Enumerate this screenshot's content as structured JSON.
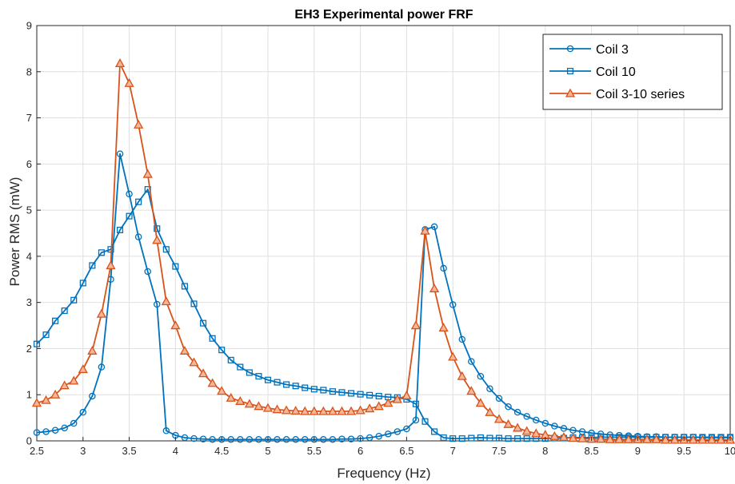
{
  "chart_data": {
    "type": "line",
    "title": "EH3 Experimental power FRF",
    "xlabel": "Frequency (Hz)",
    "ylabel": "Power RMS (mW)",
    "xlim": [
      2.5,
      10
    ],
    "ylim": [
      0,
      9
    ],
    "xticks": [
      "2.5",
      "3",
      "3.5",
      "4",
      "4.5",
      "5",
      "5.5",
      "6",
      "6.5",
      "7",
      "7.5",
      "8",
      "8.5",
      "9",
      "9.5",
      "10"
    ],
    "yticks": [
      "0",
      "1",
      "2",
      "3",
      "4",
      "5",
      "6",
      "7",
      "8",
      "9"
    ],
    "grid": true,
    "legend_position": "top-right",
    "x": [
      2.5,
      2.6,
      2.7,
      2.8,
      2.9,
      3.0,
      3.1,
      3.2,
      3.3,
      3.4,
      3.5,
      3.6,
      3.7,
      3.8,
      3.9,
      4.0,
      4.1,
      4.2,
      4.3,
      4.4,
      4.5,
      4.6,
      4.7,
      4.8,
      4.9,
      5.0,
      5.1,
      5.2,
      5.3,
      5.4,
      5.5,
      5.6,
      5.7,
      5.8,
      5.9,
      6.0,
      6.1,
      6.2,
      6.3,
      6.4,
      6.5,
      6.6,
      6.7,
      6.8,
      6.9,
      7.0,
      7.1,
      7.2,
      7.3,
      7.4,
      7.5,
      7.6,
      7.7,
      7.8,
      7.9,
      8.0,
      8.1,
      8.2,
      8.3,
      8.4,
      8.5,
      8.6,
      8.7,
      8.8,
      8.9,
      9.0,
      9.1,
      9.2,
      9.3,
      9.4,
      9.5,
      9.6,
      9.7,
      9.8,
      9.9,
      10.0
    ],
    "series": [
      {
        "name": "Coil 3",
        "color": "#0072BD",
        "marker": "circle",
        "values": [
          0.18,
          0.2,
          0.23,
          0.28,
          0.38,
          0.62,
          0.97,
          1.6,
          3.5,
          6.22,
          5.35,
          4.42,
          3.67,
          2.96,
          0.22,
          0.12,
          0.07,
          0.05,
          0.04,
          0.03,
          0.03,
          0.03,
          0.03,
          0.03,
          0.03,
          0.03,
          0.03,
          0.03,
          0.03,
          0.03,
          0.03,
          0.03,
          0.03,
          0.04,
          0.04,
          0.05,
          0.07,
          0.1,
          0.15,
          0.2,
          0.26,
          0.45,
          4.58,
          4.64,
          3.74,
          2.95,
          2.2,
          1.72,
          1.4,
          1.13,
          0.92,
          0.74,
          0.62,
          0.53,
          0.45,
          0.38,
          0.32,
          0.27,
          0.23,
          0.2,
          0.17,
          0.15,
          0.13,
          0.12,
          0.11,
          0.1,
          0.09,
          0.09,
          0.08,
          0.08,
          0.08,
          0.08,
          0.07,
          0.07,
          0.07,
          0.07
        ]
      },
      {
        "name": "Coil 10",
        "color": "#0072BD",
        "marker": "square",
        "values": [
          2.1,
          2.3,
          2.6,
          2.82,
          3.05,
          3.42,
          3.8,
          4.08,
          4.15,
          4.57,
          4.87,
          5.18,
          5.45,
          4.6,
          4.15,
          3.78,
          3.35,
          2.97,
          2.55,
          2.22,
          1.97,
          1.75,
          1.6,
          1.48,
          1.4,
          1.32,
          1.27,
          1.22,
          1.19,
          1.15,
          1.12,
          1.1,
          1.07,
          1.05,
          1.03,
          1.01,
          0.99,
          0.97,
          0.95,
          0.94,
          0.9,
          0.8,
          0.42,
          0.2,
          0.07,
          0.05,
          0.05,
          0.06,
          0.07,
          0.06,
          0.06,
          0.05,
          0.05,
          0.05,
          0.05,
          0.05,
          0.06,
          0.06,
          0.07,
          0.07,
          0.07,
          0.08,
          0.08,
          0.08,
          0.08,
          0.08,
          0.08,
          0.08,
          0.08,
          0.08,
          0.08,
          0.08,
          0.08,
          0.08,
          0.08,
          0.08
        ]
      },
      {
        "name": "Coil 3-10 series",
        "color": "#D95319",
        "marker": "triangle",
        "values": [
          0.82,
          0.88,
          1.0,
          1.2,
          1.3,
          1.55,
          1.95,
          2.75,
          3.8,
          8.18,
          7.75,
          6.85,
          5.78,
          4.35,
          3.02,
          2.5,
          1.95,
          1.7,
          1.46,
          1.25,
          1.08,
          0.93,
          0.86,
          0.8,
          0.75,
          0.71,
          0.68,
          0.66,
          0.65,
          0.64,
          0.64,
          0.64,
          0.64,
          0.64,
          0.64,
          0.66,
          0.7,
          0.75,
          0.82,
          0.9,
          0.98,
          2.5,
          4.55,
          3.3,
          2.45,
          1.82,
          1.4,
          1.08,
          0.82,
          0.62,
          0.47,
          0.36,
          0.28,
          0.21,
          0.16,
          0.13,
          0.1,
          0.08,
          0.06,
          0.05,
          0.04,
          0.04,
          0.03,
          0.03,
          0.03,
          0.03,
          0.03,
          0.03,
          0.02,
          0.02,
          0.02,
          0.02,
          0.02,
          0.02,
          0.02,
          0.02
        ]
      }
    ]
  }
}
